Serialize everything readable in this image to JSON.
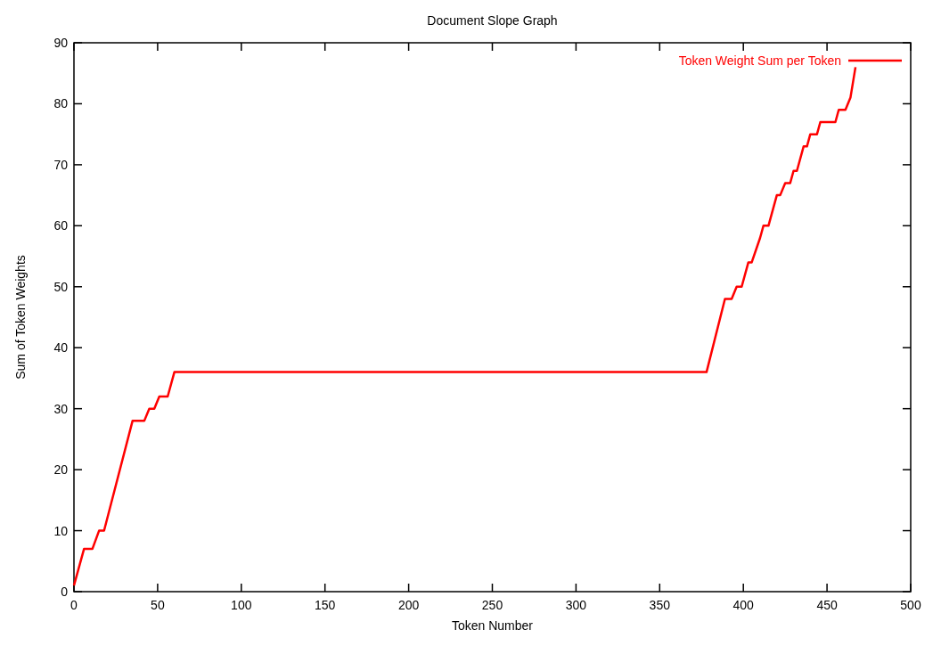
{
  "chart_data": {
    "type": "line",
    "title": "Document Slope Graph",
    "xlabel": "Token Number",
    "ylabel": "Sum of Token Weights",
    "xlim": [
      0,
      500
    ],
    "xticks": [
      0,
      50,
      100,
      150,
      200,
      250,
      300,
      350,
      400,
      450,
      500
    ],
    "ylim": [
      0,
      90
    ],
    "yticks": [
      0,
      10,
      20,
      30,
      40,
      50,
      60,
      70,
      80,
      90
    ],
    "legend": "top right",
    "grid": false,
    "marker": "none",
    "line_style": "solid",
    "series": [
      {
        "name": "Token Weight Sum per Token",
        "color": "#ff0000",
        "x": [
          0,
          6,
          11,
          15,
          18,
          35,
          42,
          45,
          48,
          51,
          56,
          60,
          378,
          389,
          393,
          396,
          399,
          403,
          405,
          410,
          412,
          415,
          420,
          422,
          425,
          428,
          430,
          432,
          436,
          438,
          440,
          444,
          446,
          455,
          457,
          461,
          464,
          467
        ],
        "values": [
          1,
          7,
          7,
          10,
          10,
          28,
          28,
          30,
          30,
          32,
          32,
          36,
          36,
          48,
          48,
          50,
          50,
          54,
          54,
          58,
          60,
          60,
          65,
          65,
          67,
          67,
          69,
          69,
          73,
          73,
          75,
          75,
          77,
          77,
          79,
          79,
          81,
          86
        ]
      }
    ]
  }
}
